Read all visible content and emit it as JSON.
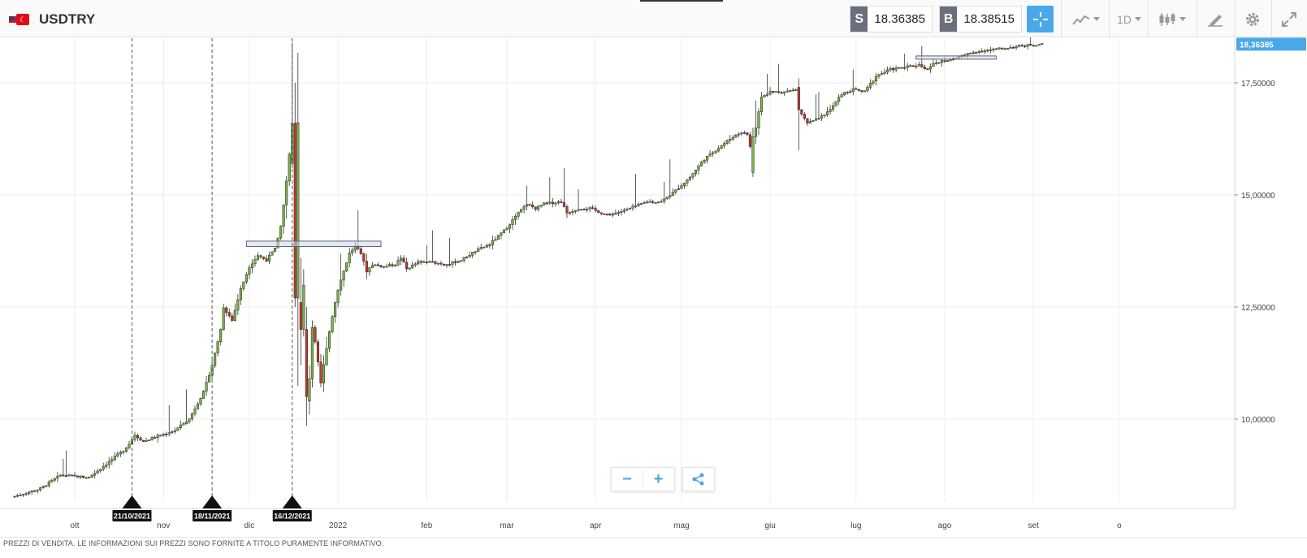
{
  "header": {
    "symbol": "USDTRY",
    "sell_tag": "S",
    "sell_price": "18.36385",
    "buy_tag": "B",
    "buy_price": "18.38515",
    "timeframe": "1D",
    "icons": [
      "crosshair-icon",
      "chart-type-icon",
      "timeframe-dropdown",
      "candlestick-icon",
      "draw-tool-icon",
      "gear-icon",
      "fullscreen-icon"
    ],
    "accent_color": "#4aa8e8",
    "tag_color": "#6a6f7d"
  },
  "chart_data": {
    "type": "candlestick",
    "ylim": [
      8.0,
      18.6
    ],
    "y_ticks": [
      "10,00000",
      "12,50000",
      "15,00000",
      "17,50000"
    ],
    "y_tick_values": [
      10.0,
      12.5,
      15.0,
      17.5
    ],
    "current_price_label": "18,36385",
    "current_price": 18.36385,
    "x_ticks": [
      "ott",
      "nov",
      "dic",
      "2022",
      "feb",
      "mar",
      "apr",
      "mag",
      "giu",
      "lug",
      "ago",
      "set",
      "o"
    ],
    "x_tick_day_index": [
      0,
      31,
      61,
      92,
      123,
      151,
      182,
      212,
      243,
      273,
      304,
      335,
      365
    ],
    "x_start": "2021-09-09",
    "event_markers": [
      {
        "label": "21/10/2021",
        "day_index": 20
      },
      {
        "label": "18/11/2021",
        "day_index": 48
      },
      {
        "label": "16/12/2021",
        "day_index": 76
      }
    ],
    "grid": true,
    "up_color": "#7cb342",
    "down_color": "#c0392b",
    "anchors": [
      [
        -21,
        8.28
      ],
      [
        -12,
        8.45
      ],
      [
        -5,
        8.75
      ],
      [
        5,
        8.7
      ],
      [
        10,
        8.95
      ],
      [
        17,
        9.3
      ],
      [
        19,
        9.45
      ],
      [
        21,
        9.65
      ],
      [
        24,
        9.5
      ],
      [
        28,
        9.6
      ],
      [
        35,
        9.75
      ],
      [
        40,
        10.0
      ],
      [
        45,
        10.6
      ],
      [
        48,
        11.2
      ],
      [
        51,
        12.0
      ],
      [
        52,
        12.5
      ],
      [
        55,
        12.2
      ],
      [
        58,
        12.9
      ],
      [
        61,
        13.4
      ],
      [
        64,
        13.65
      ],
      [
        67,
        13.55
      ],
      [
        70,
        13.8
      ],
      [
        72,
        14.3
      ],
      [
        74,
        15.3
      ],
      [
        76,
        16.5
      ],
      [
        78,
        16.6
      ],
      [
        80,
        13.0
      ],
      [
        82,
        12.4
      ],
      [
        84,
        11.7
      ],
      [
        86,
        10.8
      ],
      [
        88,
        11.6
      ],
      [
        90,
        12.3
      ],
      [
        92,
        12.9
      ],
      [
        94,
        13.3
      ],
      [
        96,
        13.7
      ],
      [
        98,
        13.85
      ],
      [
        100,
        13.7
      ],
      [
        102,
        13.3
      ],
      [
        104,
        13.45
      ],
      [
        108,
        13.4
      ],
      [
        112,
        13.45
      ],
      [
        114,
        13.6
      ],
      [
        116,
        13.35
      ],
      [
        120,
        13.5
      ],
      [
        125,
        13.5
      ],
      [
        130,
        13.45
      ],
      [
        135,
        13.55
      ],
      [
        140,
        13.75
      ],
      [
        145,
        13.9
      ],
      [
        150,
        14.2
      ],
      [
        155,
        14.6
      ],
      [
        158,
        14.8
      ],
      [
        161,
        14.7
      ],
      [
        164,
        14.8
      ],
      [
        170,
        14.85
      ],
      [
        172,
        14.6
      ],
      [
        176,
        14.7
      ],
      [
        180,
        14.7
      ],
      [
        186,
        14.55
      ],
      [
        192,
        14.65
      ],
      [
        200,
        14.85
      ],
      [
        205,
        14.85
      ],
      [
        210,
        15.1
      ],
      [
        215,
        15.4
      ],
      [
        220,
        15.8
      ],
      [
        226,
        16.1
      ],
      [
        230,
        16.3
      ],
      [
        233,
        16.4
      ],
      [
        235,
        16.35
      ],
      [
        237,
        15.8
      ],
      [
        238,
        16.5
      ],
      [
        240,
        17.2
      ],
      [
        243,
        17.3
      ],
      [
        248,
        17.3
      ],
      [
        252,
        17.35
      ],
      [
        254,
        16.8
      ],
      [
        256,
        16.6
      ],
      [
        260,
        16.7
      ],
      [
        264,
        16.9
      ],
      [
        268,
        17.25
      ],
      [
        272,
        17.35
      ],
      [
        276,
        17.3
      ],
      [
        280,
        17.65
      ],
      [
        285,
        17.8
      ],
      [
        290,
        17.85
      ],
      [
        295,
        17.9
      ],
      [
        298,
        17.8
      ],
      [
        300,
        17.95
      ],
      [
        305,
        18.0
      ],
      [
        310,
        18.1
      ],
      [
        315,
        18.2
      ],
      [
        322,
        18.25
      ],
      [
        328,
        18.3
      ],
      [
        334,
        18.35
      ],
      [
        338,
        18.36385
      ]
    ],
    "big_moves": [
      {
        "day_index": 76,
        "open": 15.7,
        "close": 16.6,
        "high": 18.4,
        "low": 15.6
      },
      {
        "day_index": 77,
        "open": 16.6,
        "close": 12.7,
        "high": 17.5,
        "low": 12.5
      },
      {
        "day_index": 79,
        "open": 12.6,
        "close": 12.0,
        "high": 13.6,
        "low": 11.2
      },
      {
        "day_index": 81,
        "open": 12.0,
        "close": 10.5,
        "high": 12.5,
        "low": 9.85
      },
      {
        "day_index": 82,
        "open": 10.4,
        "close": 10.9,
        "high": 11.2,
        "low": 10.1
      },
      {
        "day_index": 237,
        "open": 15.5,
        "close": 16.3,
        "high": 16.5,
        "low": 15.4
      },
      {
        "day_index": 253,
        "open": 17.4,
        "close": 16.9,
        "high": 17.6,
        "low": 16.0
      }
    ],
    "support_boxes": [
      {
        "x0_day": 60,
        "x1_day": 107,
        "y_low": 13.85,
        "y_high": 13.97
      },
      {
        "x0_day": 294,
        "x1_day": 322,
        "y_low": 18.05,
        "y_high": 18.1
      }
    ]
  },
  "zoom": {
    "minus": "−",
    "plus": "+"
  },
  "disclaimer": "PREZZI DI VENDITA. LE INFORMAZIONI SUI PREZZI SONO FORNITE A TITOLO PURAMENTE INFORMATIVO."
}
